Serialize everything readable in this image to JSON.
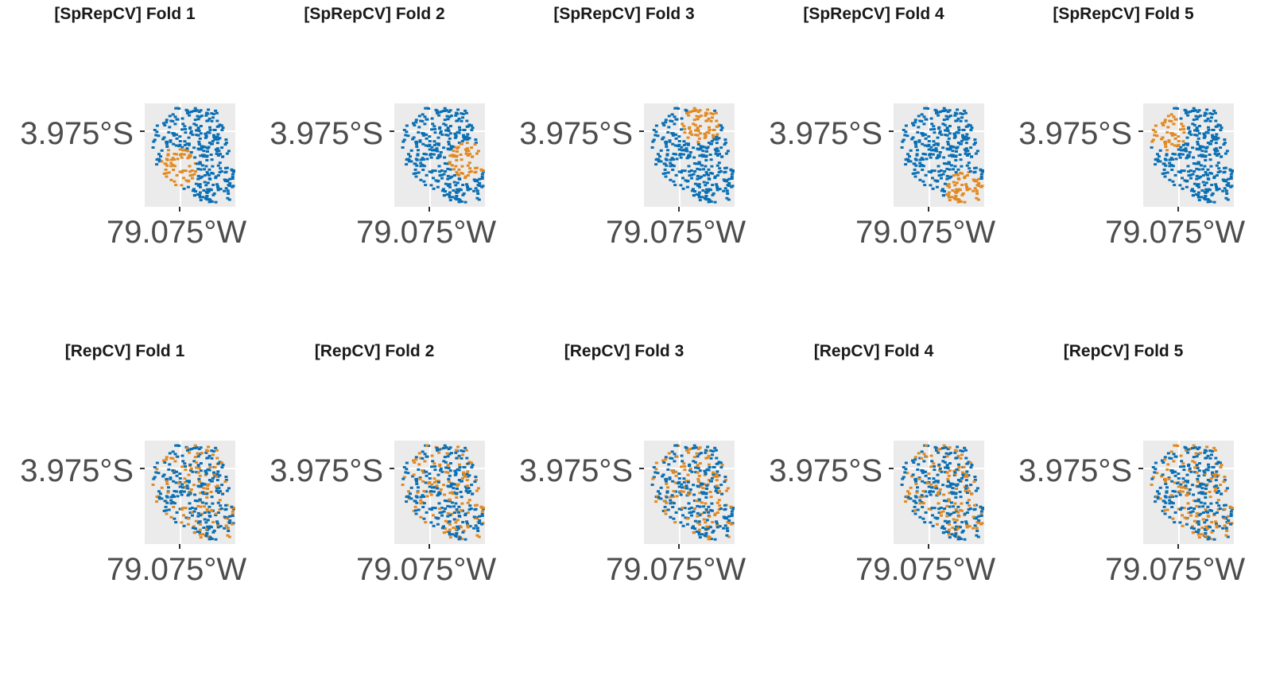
{
  "colors": {
    "test": "#e08a24",
    "train": "#0a6fb3",
    "panel_bg": "#ebebeb"
  },
  "axis_labels": {
    "y": "3.975°S",
    "x": "79.075°W"
  },
  "chart_data": [
    {
      "type": "scatter",
      "title": "[SpRepCV] Fold 1",
      "method": "SpRepCV",
      "fold": 1,
      "test_region": "southwest"
    },
    {
      "type": "scatter",
      "title": "[SpRepCV] Fold 2",
      "method": "SpRepCV",
      "fold": 2,
      "test_region": "east"
    },
    {
      "type": "scatter",
      "title": "[SpRepCV] Fold 3",
      "method": "SpRepCV",
      "fold": 3,
      "test_region": "north"
    },
    {
      "type": "scatter",
      "title": "[SpRepCV] Fold 4",
      "method": "SpRepCV",
      "fold": 4,
      "test_region": "southeast"
    },
    {
      "type": "scatter",
      "title": "[SpRepCV] Fold 5",
      "method": "SpRepCV",
      "fold": 5,
      "test_region": "northwest"
    },
    {
      "type": "scatter",
      "title": "[RepCV] Fold 1",
      "method": "RepCV",
      "fold": 1,
      "test_region": "random"
    },
    {
      "type": "scatter",
      "title": "[RepCV] Fold 2",
      "method": "RepCV",
      "fold": 2,
      "test_region": "random"
    },
    {
      "type": "scatter",
      "title": "[RepCV] Fold 3",
      "method": "RepCV",
      "fold": 3,
      "test_region": "random"
    },
    {
      "type": "scatter",
      "title": "[RepCV] Fold 4",
      "method": "RepCV",
      "fold": 4,
      "test_region": "random"
    },
    {
      "type": "scatter",
      "title": "[RepCV] Fold 5",
      "method": "RepCV",
      "fold": 5,
      "test_region": "random"
    }
  ]
}
